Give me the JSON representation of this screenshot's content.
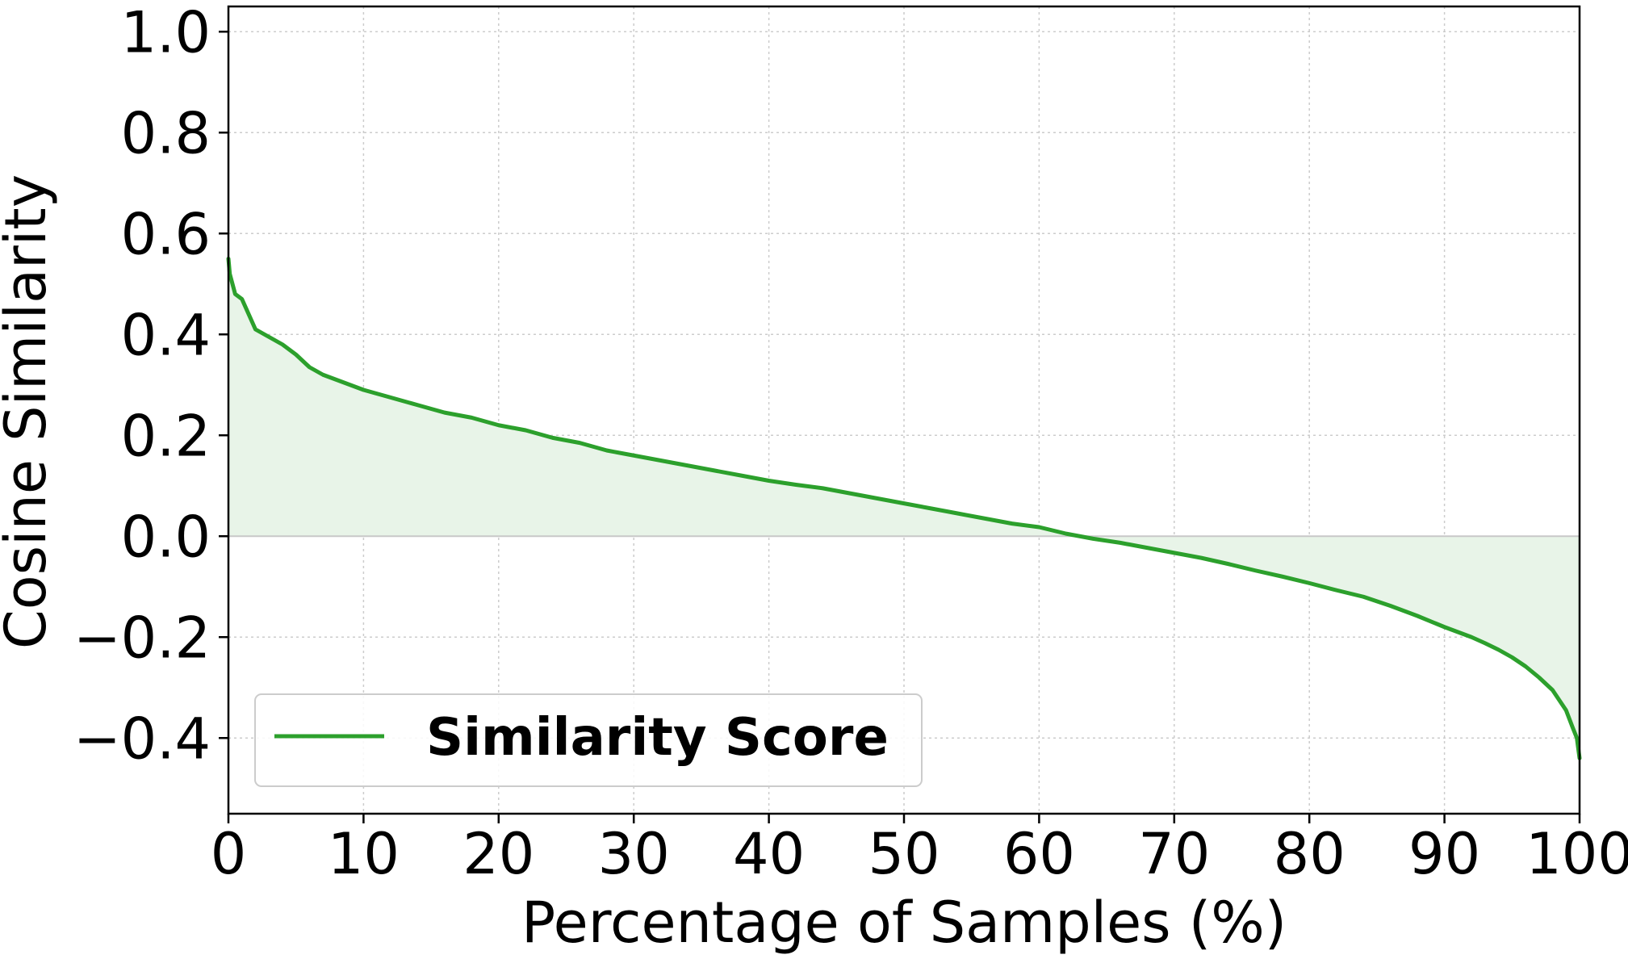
{
  "chart_data": {
    "type": "line",
    "xlabel": "Percentage of Samples (%)",
    "ylabel": "Cosine Similarity",
    "xlim": [
      0,
      100
    ],
    "ylim": [
      -0.55,
      1.05
    ],
    "xticks": [
      0,
      10,
      20,
      30,
      40,
      50,
      60,
      70,
      80,
      90,
      100
    ],
    "xtick_labels": [
      "0",
      "10",
      "20",
      "30",
      "40",
      "50",
      "60",
      "70",
      "80",
      "90",
      "100"
    ],
    "yticks": [
      -0.4,
      -0.2,
      0.0,
      0.2,
      0.4,
      0.6,
      0.8,
      1.0
    ],
    "ytick_labels": [
      "−0.4",
      "−0.2",
      "0.0",
      "0.2",
      "0.4",
      "0.6",
      "0.8",
      "1.0"
    ],
    "grid": true,
    "legend_position": "lower-left",
    "fill_to_zero": true,
    "colors": {
      "line": "#2ca02c",
      "fill": "#e8f4e8",
      "grid": "#cccccc",
      "axis": "#000000"
    },
    "series": [
      {
        "name": "Similarity Score",
        "x": [
          0,
          0.1,
          0.5,
          1,
          1.5,
          2,
          3,
          4,
          5,
          6,
          7,
          8,
          9,
          10,
          12,
          14,
          16,
          18,
          20,
          22,
          24,
          26,
          28,
          30,
          32,
          34,
          36,
          38,
          40,
          42,
          44,
          46,
          48,
          50,
          52,
          54,
          56,
          58,
          60,
          62,
          64,
          66,
          68,
          70,
          72,
          74,
          76,
          78,
          80,
          82,
          84,
          86,
          88,
          90,
          91,
          92,
          93,
          94,
          95,
          96,
          97,
          98,
          98.5,
          99,
          99.5,
          99.8,
          100
        ],
        "y": [
          0.55,
          0.52,
          0.48,
          0.47,
          0.44,
          0.41,
          0.395,
          0.38,
          0.36,
          0.335,
          0.32,
          0.31,
          0.3,
          0.29,
          0.275,
          0.26,
          0.245,
          0.235,
          0.22,
          0.21,
          0.195,
          0.185,
          0.17,
          0.16,
          0.15,
          0.14,
          0.13,
          0.12,
          0.11,
          0.102,
          0.095,
          0.085,
          0.075,
          0.065,
          0.055,
          0.045,
          0.035,
          0.025,
          0.018,
          0.005,
          -0.005,
          -0.013,
          -0.023,
          -0.033,
          -0.043,
          -0.055,
          -0.068,
          -0.08,
          -0.093,
          -0.107,
          -0.12,
          -0.138,
          -0.158,
          -0.18,
          -0.19,
          -0.2,
          -0.212,
          -0.225,
          -0.24,
          -0.258,
          -0.28,
          -0.305,
          -0.325,
          -0.345,
          -0.38,
          -0.4,
          -0.44
        ]
      }
    ]
  }
}
